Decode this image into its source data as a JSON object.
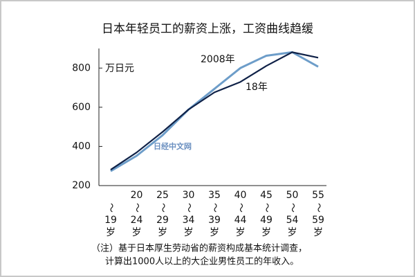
{
  "chart_data": {
    "type": "line",
    "title": "日本年轻员工的薪资上涨，工资曲线趋缓",
    "y_label": "万日元",
    "categories": [
      [
        "～",
        "19",
        "岁"
      ],
      [
        "20",
        "～",
        "24",
        "岁"
      ],
      [
        "25",
        "～",
        "29",
        "岁"
      ],
      [
        "30",
        "～",
        "34",
        "岁"
      ],
      [
        "35",
        "～",
        "39",
        "岁"
      ],
      [
        "40",
        "～",
        "44",
        "岁"
      ],
      [
        "45",
        "～",
        "49",
        "岁"
      ],
      [
        "50",
        "～",
        "54",
        "岁"
      ],
      [
        "55",
        "～",
        "59",
        "岁"
      ]
    ],
    "series": [
      {
        "name": "2008年",
        "color": "#6d9dc9",
        "values": [
          274,
          352,
          457,
          588,
          694,
          800,
          863,
          881,
          807
        ]
      },
      {
        "name": "18年",
        "color": "#0f2147",
        "values": [
          281,
          369,
          474,
          588,
          676,
          729,
          811,
          881,
          853
        ]
      }
    ],
    "ylim": [
      200,
      900
    ],
    "yticks": [
      200,
      400,
      600,
      800
    ],
    "watermark": "日经中文网",
    "note": [
      "（注）基于日本厚生劳动省的薪资构成基本统计调查，",
      "计算出1000人以上的大企业男性员工的年收入。"
    ]
  }
}
